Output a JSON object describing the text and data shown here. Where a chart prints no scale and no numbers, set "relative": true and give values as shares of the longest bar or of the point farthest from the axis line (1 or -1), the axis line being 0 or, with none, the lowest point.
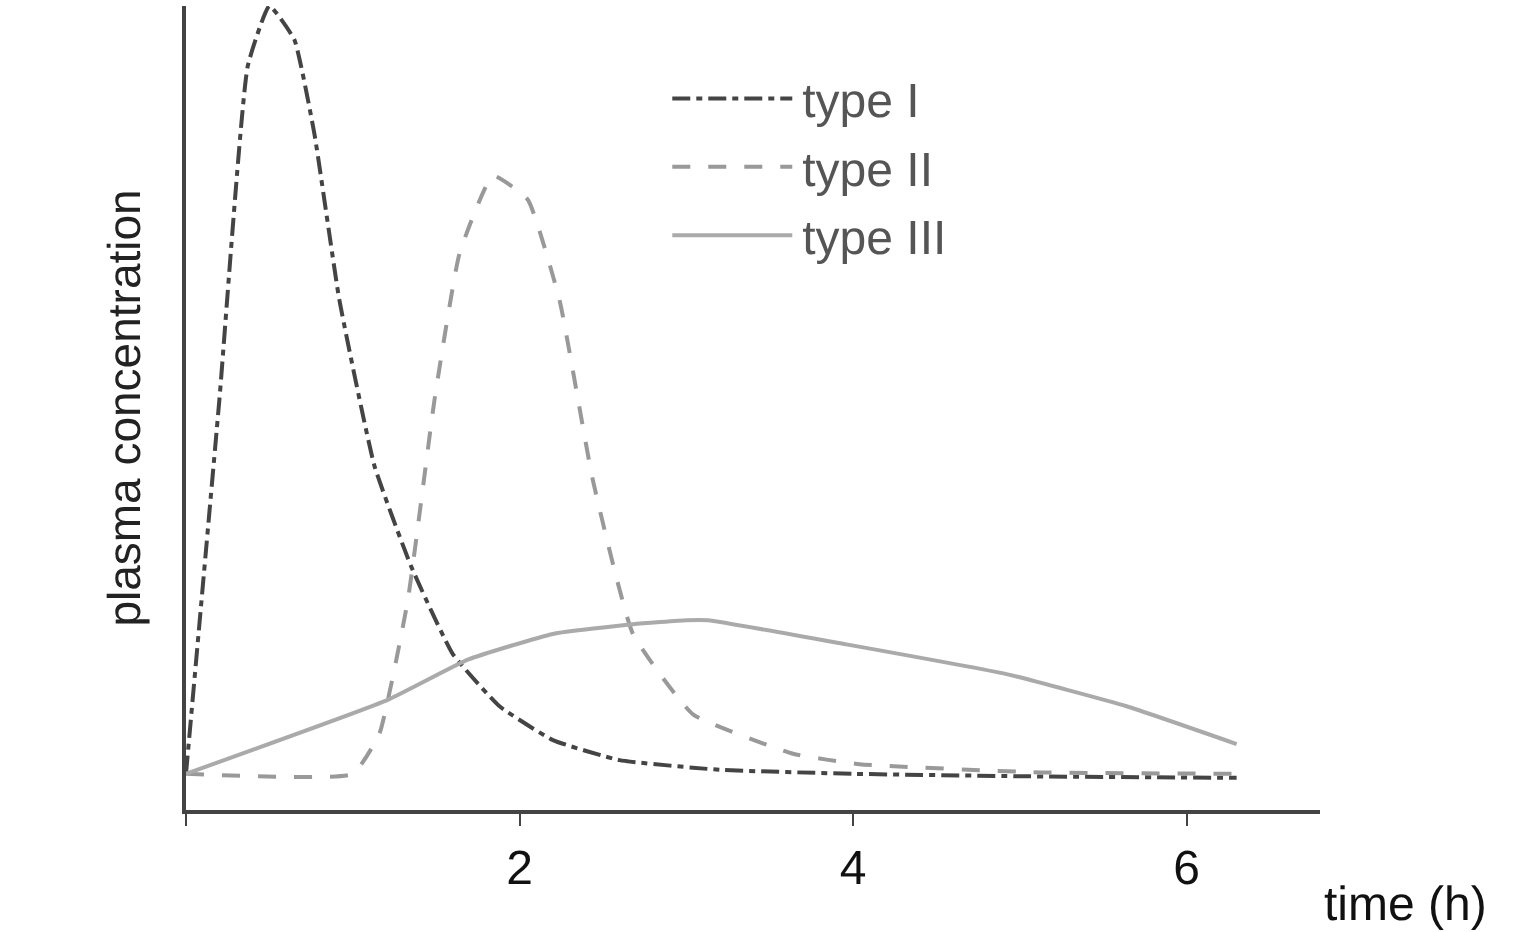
{
  "chart_data": {
    "type": "line",
    "relative": true,
    "xlabel": "time (h)",
    "ylabel": "plasma concentration",
    "xlim": [
      0,
      6.8
    ],
    "xticks": [
      {
        "value": 0,
        "label": null
      },
      2,
      4,
      6
    ],
    "legend": "top right",
    "marker": "none",
    "series": [
      {
        "name": "type I",
        "color": "#444444",
        "line_style": "dashdot",
        "x": [
          0,
          0.2,
          0.37,
          0.5,
          0.65,
          0.77,
          0.92,
          1.13,
          1.35,
          1.6,
          1.88,
          2.2,
          2.6,
          3.2,
          4,
          5,
          6.3
        ],
        "values": [
          0.045,
          0.51,
          0.925,
          1.0,
          0.958,
          0.841,
          0.634,
          0.428,
          0.303,
          0.194,
          0.129,
          0.087,
          0.062,
          0.05,
          0.045,
          0.042,
          0.04
        ]
      },
      {
        "name": "type II",
        "color": "#999999",
        "line_style": "dashed",
        "x": [
          0,
          1.0,
          1.16,
          1.33,
          1.49,
          1.64,
          1.84,
          2.05,
          2.24,
          2.44,
          2.68,
          3.04,
          3.64,
          4.04,
          5.08,
          6.34
        ],
        "values": [
          0.045,
          0.045,
          0.095,
          0.261,
          0.51,
          0.692,
          0.789,
          0.759,
          0.634,
          0.41,
          0.219,
          0.119,
          0.07,
          0.057,
          0.047,
          0.045
        ]
      },
      {
        "name": "type III",
        "color": "#aaaaaa",
        "line_style": "solid",
        "x": [
          0,
          1.21,
          1.69,
          2.2,
          2.68,
          3.0,
          3.13,
          3.96,
          4.92,
          5.64,
          6.3
        ],
        "values": [
          0.045,
          0.137,
          0.187,
          0.219,
          0.231,
          0.236,
          0.236,
          0.206,
          0.169,
          0.129,
          0.082
        ]
      }
    ]
  }
}
